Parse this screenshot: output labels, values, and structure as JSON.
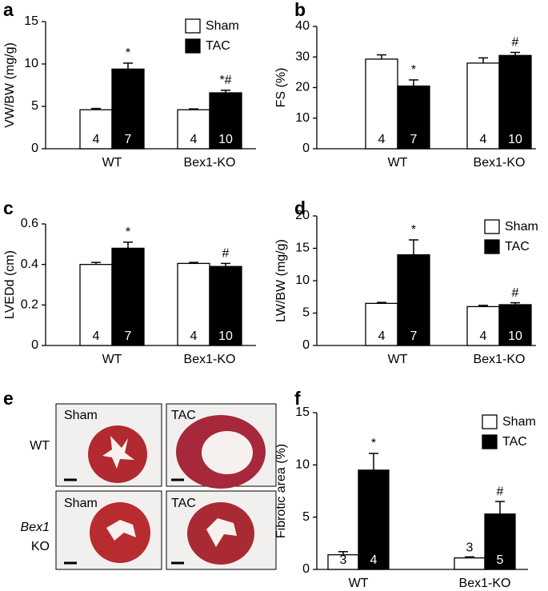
{
  "chart_data": [
    {
      "type": "bar",
      "panel": "a",
      "y_label": "VW/BW (mg/g)",
      "categories": [
        "WT",
        "Bex1-KO"
      ],
      "ylim": [
        0,
        15
      ],
      "yticks": [
        0,
        5,
        10,
        15
      ],
      "legend": "upper right",
      "series": [
        {
          "name": "Sham",
          "color": "#ffffff",
          "values": [
            4.6,
            4.6
          ],
          "errors": [
            0.15,
            0.1
          ],
          "n": [
            4,
            4
          ],
          "annotations": [
            null,
            null
          ]
        },
        {
          "name": "TAC",
          "color": "#000000",
          "values": [
            9.4,
            6.6
          ],
          "errors": [
            0.7,
            0.3
          ],
          "n": [
            7,
            10
          ],
          "annotations": [
            "*",
            "*#"
          ]
        }
      ]
    },
    {
      "type": "bar",
      "panel": "b",
      "y_label": "FS (%)",
      "categories": [
        "WT",
        "Bex1-KO"
      ],
      "ylim": [
        0,
        40
      ],
      "yticks": [
        0,
        10,
        20,
        30,
        40
      ],
      "series": [
        {
          "name": "Sham",
          "color": "#ffffff",
          "values": [
            29.3,
            28
          ],
          "errors": [
            1.4,
            1.7
          ],
          "n": [
            4,
            4
          ],
          "annotations": [
            null,
            null
          ]
        },
        {
          "name": "TAC",
          "color": "#000000",
          "values": [
            20.5,
            30.5
          ],
          "errors": [
            2,
            1
          ],
          "n": [
            7,
            10
          ],
          "annotations": [
            "*",
            "#"
          ]
        }
      ]
    },
    {
      "type": "bar",
      "panel": "c",
      "y_label": "LVEDd (cm)",
      "categories": [
        "WT",
        "Bex1-KO"
      ],
      "ylim": [
        0,
        0.6
      ],
      "yticks": [
        0,
        0.2,
        0.4,
        0.6
      ],
      "series": [
        {
          "name": "Sham",
          "color": "#ffffff",
          "values": [
            0.4,
            0.405
          ],
          "errors": [
            0.01,
            0.005
          ],
          "n": [
            4,
            4
          ],
          "annotations": [
            null,
            null
          ]
        },
        {
          "name": "TAC",
          "color": "#000000",
          "values": [
            0.48,
            0.39
          ],
          "errors": [
            0.03,
            0.015
          ],
          "n": [
            7,
            10
          ],
          "annotations": [
            "*",
            "#"
          ]
        }
      ]
    },
    {
      "type": "bar",
      "panel": "d",
      "y_label": "LW/BW (mg/g)",
      "categories": [
        "WT",
        "Bex1-KO"
      ],
      "ylim": [
        0,
        20
      ],
      "yticks": [
        0,
        5,
        10,
        15,
        20
      ],
      "legend": "upper right",
      "series": [
        {
          "name": "Sham",
          "color": "#ffffff",
          "values": [
            6.5,
            6.0
          ],
          "errors": [
            0.15,
            0.2
          ],
          "n": [
            4,
            4
          ],
          "annotations": [
            null,
            null
          ]
        },
        {
          "name": "TAC",
          "color": "#000000",
          "values": [
            14,
            6.3
          ],
          "errors": [
            2.3,
            0.3
          ],
          "n": [
            7,
            10
          ],
          "annotations": [
            "*",
            "#"
          ]
        }
      ]
    },
    {
      "type": "bar",
      "panel": "f",
      "y_label": "Fibrotic area (%)",
      "categories": [
        "WT",
        "Bex1-KO"
      ],
      "ylim": [
        0,
        15
      ],
      "yticks": [
        0,
        5,
        10,
        15
      ],
      "legend": "upper right",
      "series": [
        {
          "name": "Sham",
          "color": "#ffffff",
          "values": [
            1.4,
            1.1
          ],
          "errors": [
            0.3,
            0.1
          ],
          "n": [
            3,
            3
          ],
          "annotations": [
            null,
            null
          ]
        },
        {
          "name": "TAC",
          "color": "#000000",
          "values": [
            9.5,
            5.3
          ],
          "errors": [
            1.6,
            1.2
          ],
          "n": [
            4,
            5
          ],
          "annotations": [
            "*",
            "#"
          ]
        }
      ]
    }
  ],
  "image_panel": {
    "panel": "e",
    "rows": [
      {
        "label": [
          "WT"
        ],
        "columns": [
          "Sham",
          "TAC"
        ]
      },
      {
        "label": [
          "Bex1",
          "KO"
        ],
        "columns": [
          "Sham",
          "TAC"
        ]
      }
    ]
  }
}
